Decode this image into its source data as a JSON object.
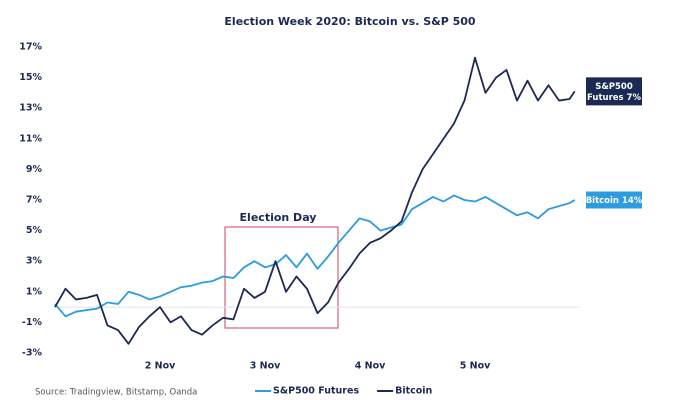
{
  "chart_data": {
    "type": "line",
    "title": "Election Week 2020: Bitcoin vs. S&P 500",
    "x": [
      1.0,
      1.1,
      1.2,
      1.3,
      1.4,
      1.5,
      1.6,
      1.7,
      1.8,
      1.9,
      2.0,
      2.1,
      2.2,
      2.3,
      2.4,
      2.5,
      2.6,
      2.7,
      2.8,
      2.9,
      3.0,
      3.1,
      3.2,
      3.3,
      3.4,
      3.5,
      3.6,
      3.7,
      3.8,
      3.9,
      4.0,
      4.1,
      4.2,
      4.3,
      4.4,
      4.5,
      4.6,
      4.7,
      4.8,
      4.9,
      5.0,
      5.1,
      5.2,
      5.3,
      5.4,
      5.5,
      5.6,
      5.7,
      5.8,
      5.9,
      5.95
    ],
    "series": [
      {
        "name": "S&P500 Futures",
        "color": "#2d9be0",
        "values": [
          0.2,
          -0.6,
          -0.3,
          -0.2,
          -0.1,
          0.3,
          0.2,
          1.0,
          0.8,
          0.5,
          0.7,
          1.0,
          1.3,
          1.4,
          1.6,
          1.7,
          2.0,
          1.9,
          2.6,
          3.0,
          2.6,
          2.8,
          3.4,
          2.6,
          3.5,
          2.5,
          3.3,
          4.2,
          5.0,
          5.8,
          5.6,
          5.0,
          5.2,
          5.4,
          6.4,
          6.8,
          7.2,
          6.9,
          7.3,
          7.0,
          6.9,
          7.2,
          6.8,
          6.4,
          6.0,
          6.2,
          5.8,
          6.4,
          6.6,
          6.8,
          7.0
        ]
      },
      {
        "name": "Bitcoin",
        "color": "#1b2a52",
        "values": [
          0.0,
          1.2,
          0.5,
          0.6,
          0.8,
          -1.2,
          -1.5,
          -2.4,
          -1.3,
          -0.6,
          0.0,
          -1.0,
          -0.6,
          -1.5,
          -1.8,
          -1.2,
          -0.7,
          -0.8,
          1.2,
          0.6,
          1.0,
          3.0,
          1.0,
          2.0,
          1.2,
          -0.4,
          0.3,
          1.6,
          2.5,
          3.5,
          4.2,
          4.5,
          5.0,
          5.6,
          7.5,
          9.0,
          10.0,
          11.0,
          12.0,
          13.5,
          16.3,
          14.0,
          15.0,
          15.5,
          13.5,
          14.8,
          13.5,
          14.5,
          13.5,
          13.6,
          14.1
        ]
      }
    ],
    "end_labels": [
      [
        "Bitcoin 14%"
      ],
      [
        "S&P500",
        "Futures 7%"
      ]
    ],
    "annotation": "Election Day",
    "source": "Source: Tradingview, Bitstamp, Oanda",
    "xlim": [
      1,
      6
    ],
    "xticks": [
      {
        "value": 2,
        "label": "2 Nov"
      },
      {
        "value": 3,
        "label": "3 Nov"
      },
      {
        "value": 4,
        "label": "4 Nov"
      },
      {
        "value": 5,
        "label": "5 Nov"
      }
    ],
    "ylim": [
      -3,
      17
    ],
    "yticks": [
      {
        "value": -3,
        "label": "-3%"
      },
      {
        "value": -1,
        "label": "-1%"
      },
      {
        "value": 1,
        "label": "1%"
      },
      {
        "value": 3,
        "label": "3%"
      },
      {
        "value": 5,
        "label": "5%"
      },
      {
        "value": 7,
        "label": "7%"
      },
      {
        "value": 9,
        "label": "9%"
      },
      {
        "value": 11,
        "label": "11%"
      },
      {
        "value": 13,
        "label": "13%"
      },
      {
        "value": 15,
        "label": "15%"
      },
      {
        "value": 17,
        "label": "17%"
      }
    ],
    "grid": false
  }
}
